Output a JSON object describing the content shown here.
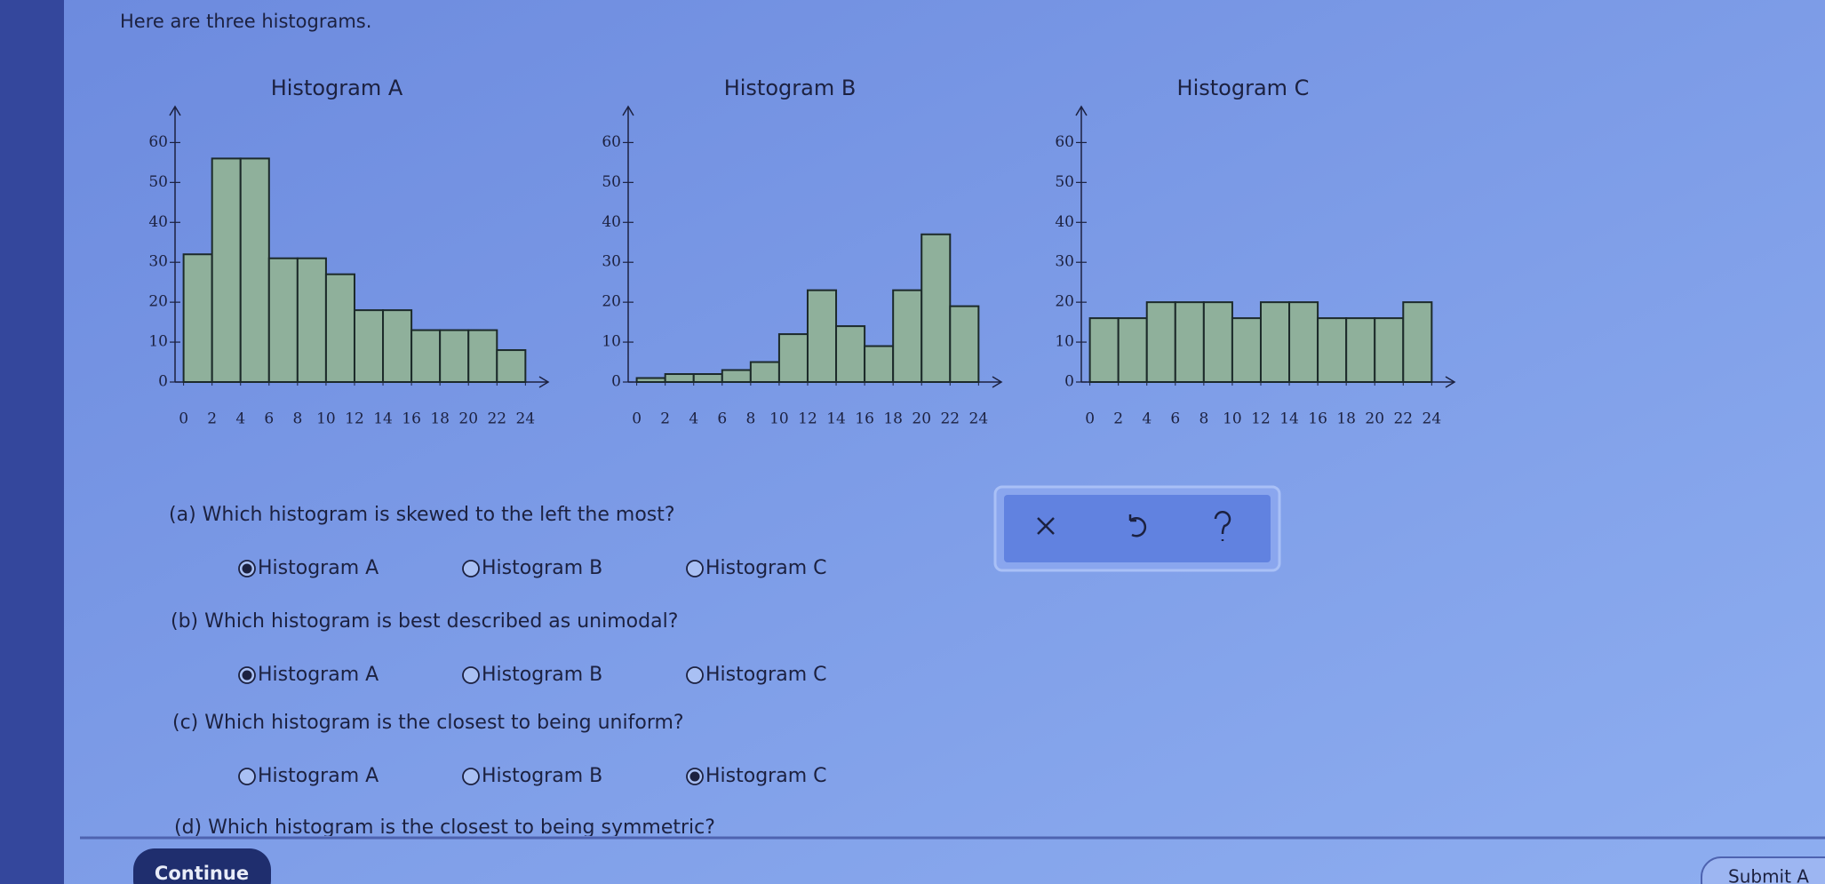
{
  "intro": "Here are three histograms.",
  "chart_data": [
    {
      "type": "histogram",
      "title": "Histogram A",
      "bins": [
        0,
        2,
        4,
        6,
        8,
        10,
        12,
        14,
        16,
        18,
        20,
        22,
        24
      ],
      "values": [
        32,
        56,
        56,
        31,
        31,
        27,
        18,
        18,
        13,
        13,
        13,
        8
      ],
      "color": "#8fb09b",
      "xlim": [
        -0.6,
        25.6
      ],
      "ylim": [
        0,
        69
      ],
      "xticks": [
        0,
        2,
        4,
        6,
        8,
        10,
        12,
        14,
        16,
        18,
        20,
        22,
        24
      ],
      "yticks": [
        0,
        10,
        20,
        30,
        40,
        50,
        60
      ]
    },
    {
      "type": "histogram",
      "title": "Histogram B",
      "bins": [
        0,
        2,
        4,
        6,
        8,
        10,
        12,
        14,
        16,
        18,
        20,
        22,
        24
      ],
      "values": [
        1,
        2,
        2,
        3,
        5,
        12,
        23,
        14,
        9,
        23,
        37,
        19
      ],
      "color": "#8fb09b",
      "xlim": [
        -0.6,
        25.6
      ],
      "ylim": [
        0,
        69
      ],
      "xticks": [
        0,
        2,
        4,
        6,
        8,
        10,
        12,
        14,
        16,
        18,
        20,
        22,
        24
      ],
      "yticks": [
        0,
        10,
        20,
        30,
        40,
        50,
        60
      ]
    },
    {
      "type": "histogram",
      "title": "Histogram C",
      "bins": [
        0,
        2,
        4,
        6,
        8,
        10,
        12,
        14,
        16,
        18,
        20,
        22,
        24
      ],
      "values": [
        16,
        16,
        20,
        20,
        20,
        16,
        20,
        20,
        16,
        16,
        16,
        20
      ],
      "color": "#8fb09b",
      "xlim": [
        -0.6,
        25.6
      ],
      "ylim": [
        0,
        69
      ],
      "xticks": [
        0,
        2,
        4,
        6,
        8,
        10,
        12,
        14,
        16,
        18,
        20,
        22,
        24
      ],
      "yticks": [
        0,
        10,
        20,
        30,
        40,
        50,
        60
      ]
    }
  ],
  "questions": [
    {
      "label": "(a) Which histogram is skewed to the left the most?",
      "options": [
        "Histogram A",
        "Histogram B",
        "Histogram C"
      ],
      "selected": 0
    },
    {
      "label": "(b) Which histogram is best described as unimodal?",
      "options": [
        "Histogram A",
        "Histogram B",
        "Histogram C"
      ],
      "selected": 0
    },
    {
      "label": "(c) Which histogram is the closest to being uniform?",
      "options": [
        "Histogram A",
        "Histogram B",
        "Histogram C"
      ],
      "selected": 2
    },
    {
      "label": "(d) Which histogram is the closest to being symmetric?"
    }
  ],
  "continue": "Continue",
  "submit": "Submit A"
}
